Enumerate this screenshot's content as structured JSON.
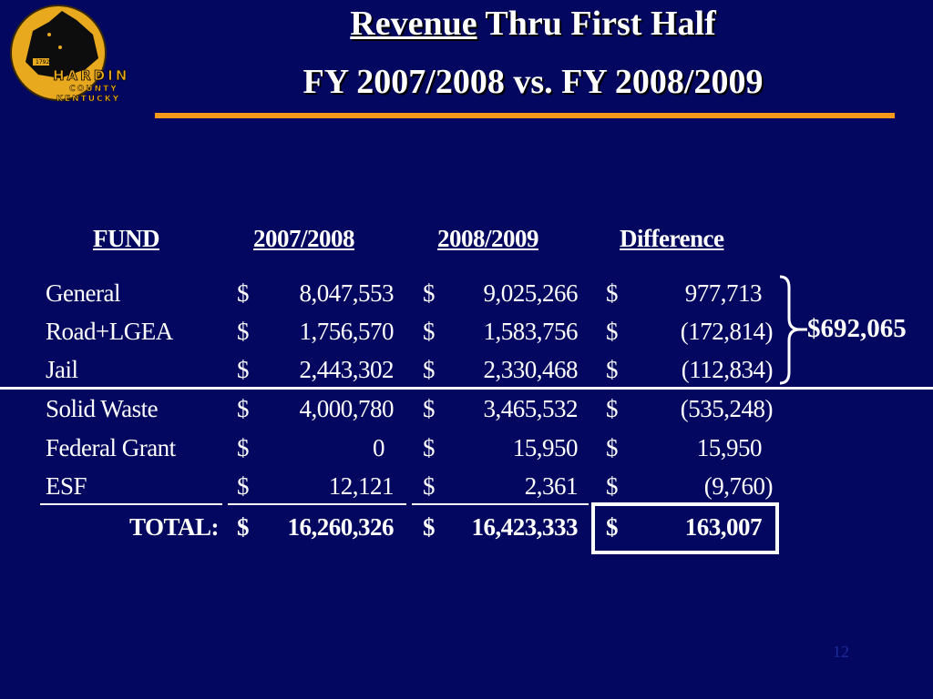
{
  "title": {
    "line1_underlined": "Revenue",
    "line1_rest": "Thru First Half",
    "line2": "FY 2007/2008 vs. FY 2008/2009"
  },
  "logo": {
    "name": "HARDIN",
    "county": "COUNTY",
    "state": "KENTUCKY",
    "year": "1792"
  },
  "columns": {
    "fund": "FUND",
    "fy1": "2007/2008",
    "fy2": "2008/2009",
    "diff": "Difference"
  },
  "currency": "$",
  "rows": [
    {
      "fund": "General",
      "fy1": "8,047,553",
      "fy2": "9,025,266",
      "diff": "977,713"
    },
    {
      "fund": "Road+LGEA",
      "fy1": "1,756,570",
      "fy2": "1,583,756",
      "diff": "(172,814)"
    },
    {
      "fund": "Jail",
      "fy1": "2,443,302",
      "fy2": "2,330,468",
      "diff": "(112,834)"
    },
    {
      "fund": "Solid Waste",
      "fy1": "4,000,780",
      "fy2": "3,465,532",
      "diff": "(535,248)"
    },
    {
      "fund": "Federal Grant",
      "fy1": "0",
      "fy2": "15,950",
      "diff": "15,950"
    },
    {
      "fund": "ESF",
      "fy1": "12,121",
      "fy2": "2,361",
      "diff": "(9,760)"
    }
  ],
  "total": {
    "label": "TOTAL:",
    "fy1": "16,260,326",
    "fy2": "16,423,333",
    "diff": "163,007"
  },
  "subtotal": "$692,065",
  "page_number": "12",
  "colors": {
    "background": "#03075f",
    "accent": "#f39a1b",
    "logo_gold": "#e9a91f"
  }
}
